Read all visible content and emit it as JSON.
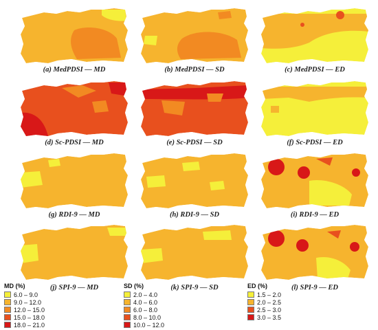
{
  "captions": [
    "(a) MedPDSI — MD",
    "(b) MedPDSI — SD",
    "(c) MedPDSI — ED",
    "(d) Sc-PDSI — MD",
    "(e) Sc-PDSI — SD",
    "(f) Sc-PDSI — ED",
    "(g) RDI-9 — MD",
    "(h) RDI-9 — SD",
    "(i) RDI-9 — ED",
    "(j) SPI-9 — MD",
    "(k) SPI-9 — SD",
    "(l) SPI-9 — ED"
  ],
  "legends": {
    "md": {
      "title": "MD (%)",
      "items": [
        {
          "label": "6.0 – 9.0",
          "color": "#f5ef3a"
        },
        {
          "label": "9.0 – 12.0",
          "color": "#f6b42e"
        },
        {
          "label": "12.0 – 15.0",
          "color": "#f28a22"
        },
        {
          "label": "15.0 – 18.0",
          "color": "#e8501e"
        },
        {
          "label": "18.0 – 21.0",
          "color": "#d81818"
        }
      ]
    },
    "sd": {
      "title": "SD (%)",
      "items": [
        {
          "label": "2.0 – 4.0",
          "color": "#f5ef3a"
        },
        {
          "label": "4.0 – 6.0",
          "color": "#f6b42e"
        },
        {
          "label": "6.0 – 8.0",
          "color": "#f28a22"
        },
        {
          "label": "8.0 – 10.0",
          "color": "#e8501e"
        },
        {
          "label": "10.0 – 12.0",
          "color": "#d81818"
        }
      ]
    },
    "ed": {
      "title": "ED (%)",
      "items": [
        {
          "label": "1.5 – 2.0",
          "color": "#f5ef3a"
        },
        {
          "label": "2.0 – 2.5",
          "color": "#f6b42e"
        },
        {
          "label": "2.5 – 3.0",
          "color": "#e8501e"
        },
        {
          "label": "3.0 – 3.5",
          "color": "#d81818"
        }
      ]
    }
  }
}
